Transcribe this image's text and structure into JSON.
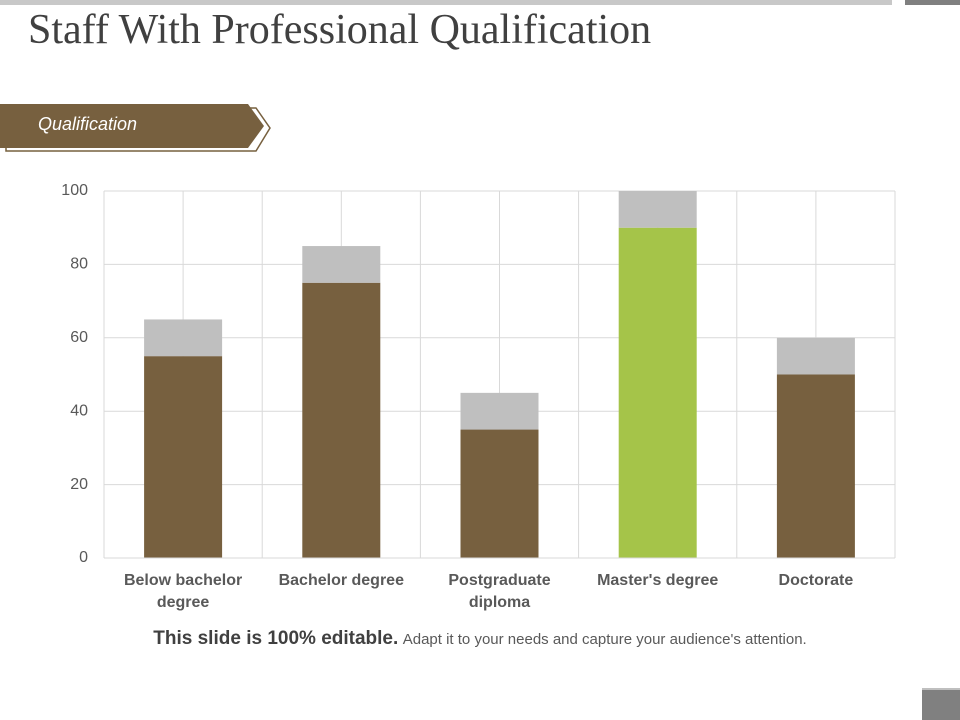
{
  "title": "Staff With Professional Qualification",
  "banner": "Qualification",
  "footer": {
    "bold": "This slide is 100% editable.",
    "text": "Adapt it to your needs and capture your audience's attention."
  },
  "chart_data": {
    "type": "stacked_bar",
    "categories": [
      "Below bachelor degree",
      "Bachelor degree",
      "Postgraduate diploma",
      "Master's degree",
      "Doctorate"
    ],
    "series": [
      {
        "color": "#77603f",
        "colors": [
          "#77603f",
          "#77603f",
          "#77603f",
          "#a5c449",
          "#77603f"
        ],
        "values": [
          55,
          75,
          35,
          90,
          50
        ]
      },
      {
        "color": "#bfbfbf",
        "values": [
          10,
          10,
          10,
          10,
          10
        ]
      }
    ],
    "ylim": [
      0,
      100
    ],
    "yticks": [
      0,
      20,
      40,
      60,
      80,
      100
    ],
    "grid": true
  }
}
